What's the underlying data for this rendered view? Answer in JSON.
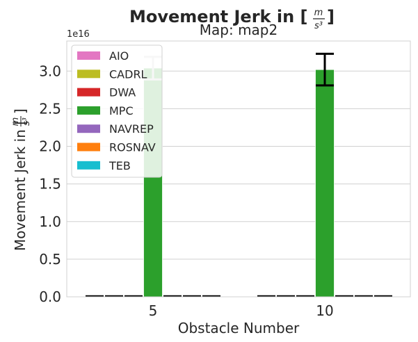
{
  "chart_data": {
    "type": "bar",
    "title": "Movement Jerk in [",
    "title_fraction": {
      "numerator": "m",
      "denominator": "s³"
    },
    "title_suffix": "]",
    "subtitle": "Map: map2",
    "xlabel": "Obstacle Number",
    "ylabel": "Movement Jerk in [",
    "ylabel_suffix": "]",
    "y_offset_label": "1e16",
    "categories": [
      "5",
      "10"
    ],
    "ylim": [
      0,
      3.4
    ],
    "yticks": [
      0.0,
      0.5,
      1.0,
      1.5,
      2.0,
      2.5,
      3.0
    ],
    "ytick_labels": [
      "0.0",
      "0.5",
      "1.0",
      "1.5",
      "2.0",
      "2.5",
      "3.0"
    ],
    "grid": true,
    "legend_position": "top-left",
    "series": [
      {
        "name": "AIO",
        "color": "#e377c2",
        "values": [
          0,
          0
        ],
        "errors": [
          0,
          0
        ]
      },
      {
        "name": "CADRL",
        "color": "#bcbd22",
        "values": [
          0,
          0
        ],
        "errors": [
          0,
          0
        ]
      },
      {
        "name": "DWA",
        "color": "#d62728",
        "values": [
          0,
          0
        ],
        "errors": [
          0,
          0
        ]
      },
      {
        "name": "MPC",
        "color": "#2ca02c",
        "values": [
          3.04,
          3.02
        ],
        "errors": [
          0.15,
          0.21
        ]
      },
      {
        "name": "NAVREP",
        "color": "#9467bd",
        "values": [
          0,
          0
        ],
        "errors": [
          0,
          0
        ]
      },
      {
        "name": "ROSNAV",
        "color": "#ff7f0e",
        "values": [
          0,
          0
        ],
        "errors": [
          0,
          0
        ]
      },
      {
        "name": "TEB",
        "color": "#17becf",
        "values": [
          0,
          0
        ],
        "errors": [
          0,
          0
        ]
      }
    ]
  }
}
